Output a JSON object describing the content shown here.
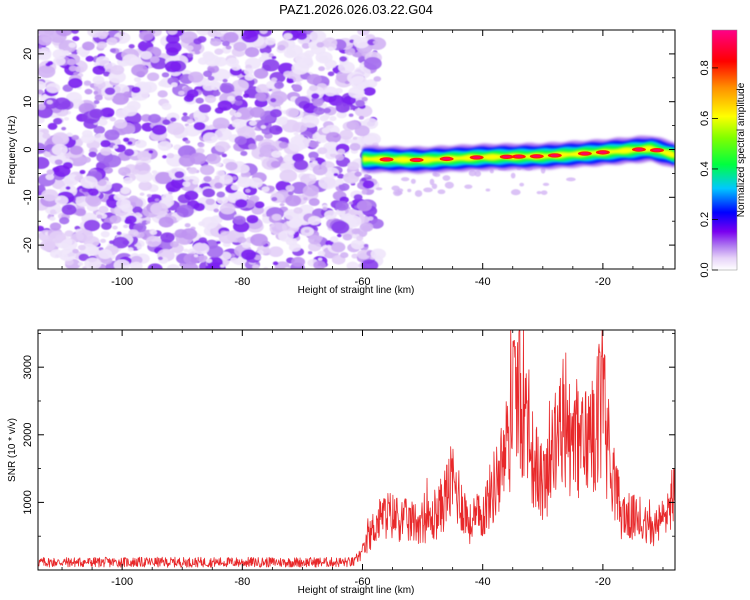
{
  "title": "PAZ1.2026.026.03.22.G04",
  "chart_data": [
    {
      "type": "heatmap",
      "name": "spectrogram",
      "xlabel": "Height of straight line (km)",
      "ylabel": "Frequency (Hz)",
      "xlim": [
        -114,
        -8
      ],
      "ylim": [
        -25,
        25
      ],
      "xticks": [
        -100,
        -80,
        -60,
        -40,
        -20
      ],
      "yticks": [
        -20,
        -10,
        0,
        10,
        20
      ],
      "noise_region_x": [
        -114,
        -60
      ],
      "signal_region_x": [
        -60,
        -8
      ],
      "signal_band_center_hz": [
        {
          "x": -60,
          "y": -2.0
        },
        {
          "x": -50,
          "y": -2.2
        },
        {
          "x": -40,
          "y": -1.6
        },
        {
          "x": -30,
          "y": -1.4
        },
        {
          "x": -20,
          "y": -0.6
        },
        {
          "x": -12,
          "y": 0.2
        },
        {
          "x": -8,
          "y": -1.2
        }
      ],
      "colorbar": {
        "label": "Normalized spectral amplitude",
        "range": [
          0.0,
          0.95
        ],
        "ticks": [
          "0.0",
          "0.2",
          "0.4",
          "0.6",
          "0.8"
        ],
        "tick_values": [
          0.0,
          0.2,
          0.4,
          0.6,
          0.8
        ],
        "colors": [
          "#ffffff",
          "#d9b8f5",
          "#8a2be2",
          "#0000ff",
          "#00d0ff",
          "#00ff00",
          "#ffff00",
          "#ff8000",
          "#ff0000",
          "#ff0080"
        ]
      }
    },
    {
      "type": "line",
      "name": "snr",
      "xlabel": "Height of straight line (km)",
      "ylabel": "SNR (10 * v/v)",
      "xlim": [
        -114,
        -8
      ],
      "ylim": [
        0,
        3550
      ],
      "xticks": [
        -100,
        -80,
        -60,
        -40,
        -20
      ],
      "yticks": [
        1000,
        2000,
        3000
      ],
      "color": "#e8282a",
      "series_envelope": [
        {
          "x": -114,
          "y": 130
        },
        {
          "x": -100,
          "y": 120
        },
        {
          "x": -80,
          "y": 110
        },
        {
          "x": -62,
          "y": 120
        },
        {
          "x": -60,
          "y": 300
        },
        {
          "x": -58,
          "y": 800
        },
        {
          "x": -56,
          "y": 1000
        },
        {
          "x": -52,
          "y": 850
        },
        {
          "x": -48,
          "y": 900
        },
        {
          "x": -45,
          "y": 1600
        },
        {
          "x": -42,
          "y": 800
        },
        {
          "x": -40,
          "y": 1000
        },
        {
          "x": -37,
          "y": 1800
        },
        {
          "x": -34,
          "y": 3000
        },
        {
          "x": -32,
          "y": 2100
        },
        {
          "x": -30,
          "y": 1500
        },
        {
          "x": -27,
          "y": 2500
        },
        {
          "x": -24,
          "y": 2200
        },
        {
          "x": -20,
          "y": 2700
        },
        {
          "x": -17,
          "y": 1000
        },
        {
          "x": -14,
          "y": 900
        },
        {
          "x": -12,
          "y": 700
        },
        {
          "x": -10,
          "y": 900
        },
        {
          "x": -8,
          "y": 1450
        }
      ]
    }
  ]
}
